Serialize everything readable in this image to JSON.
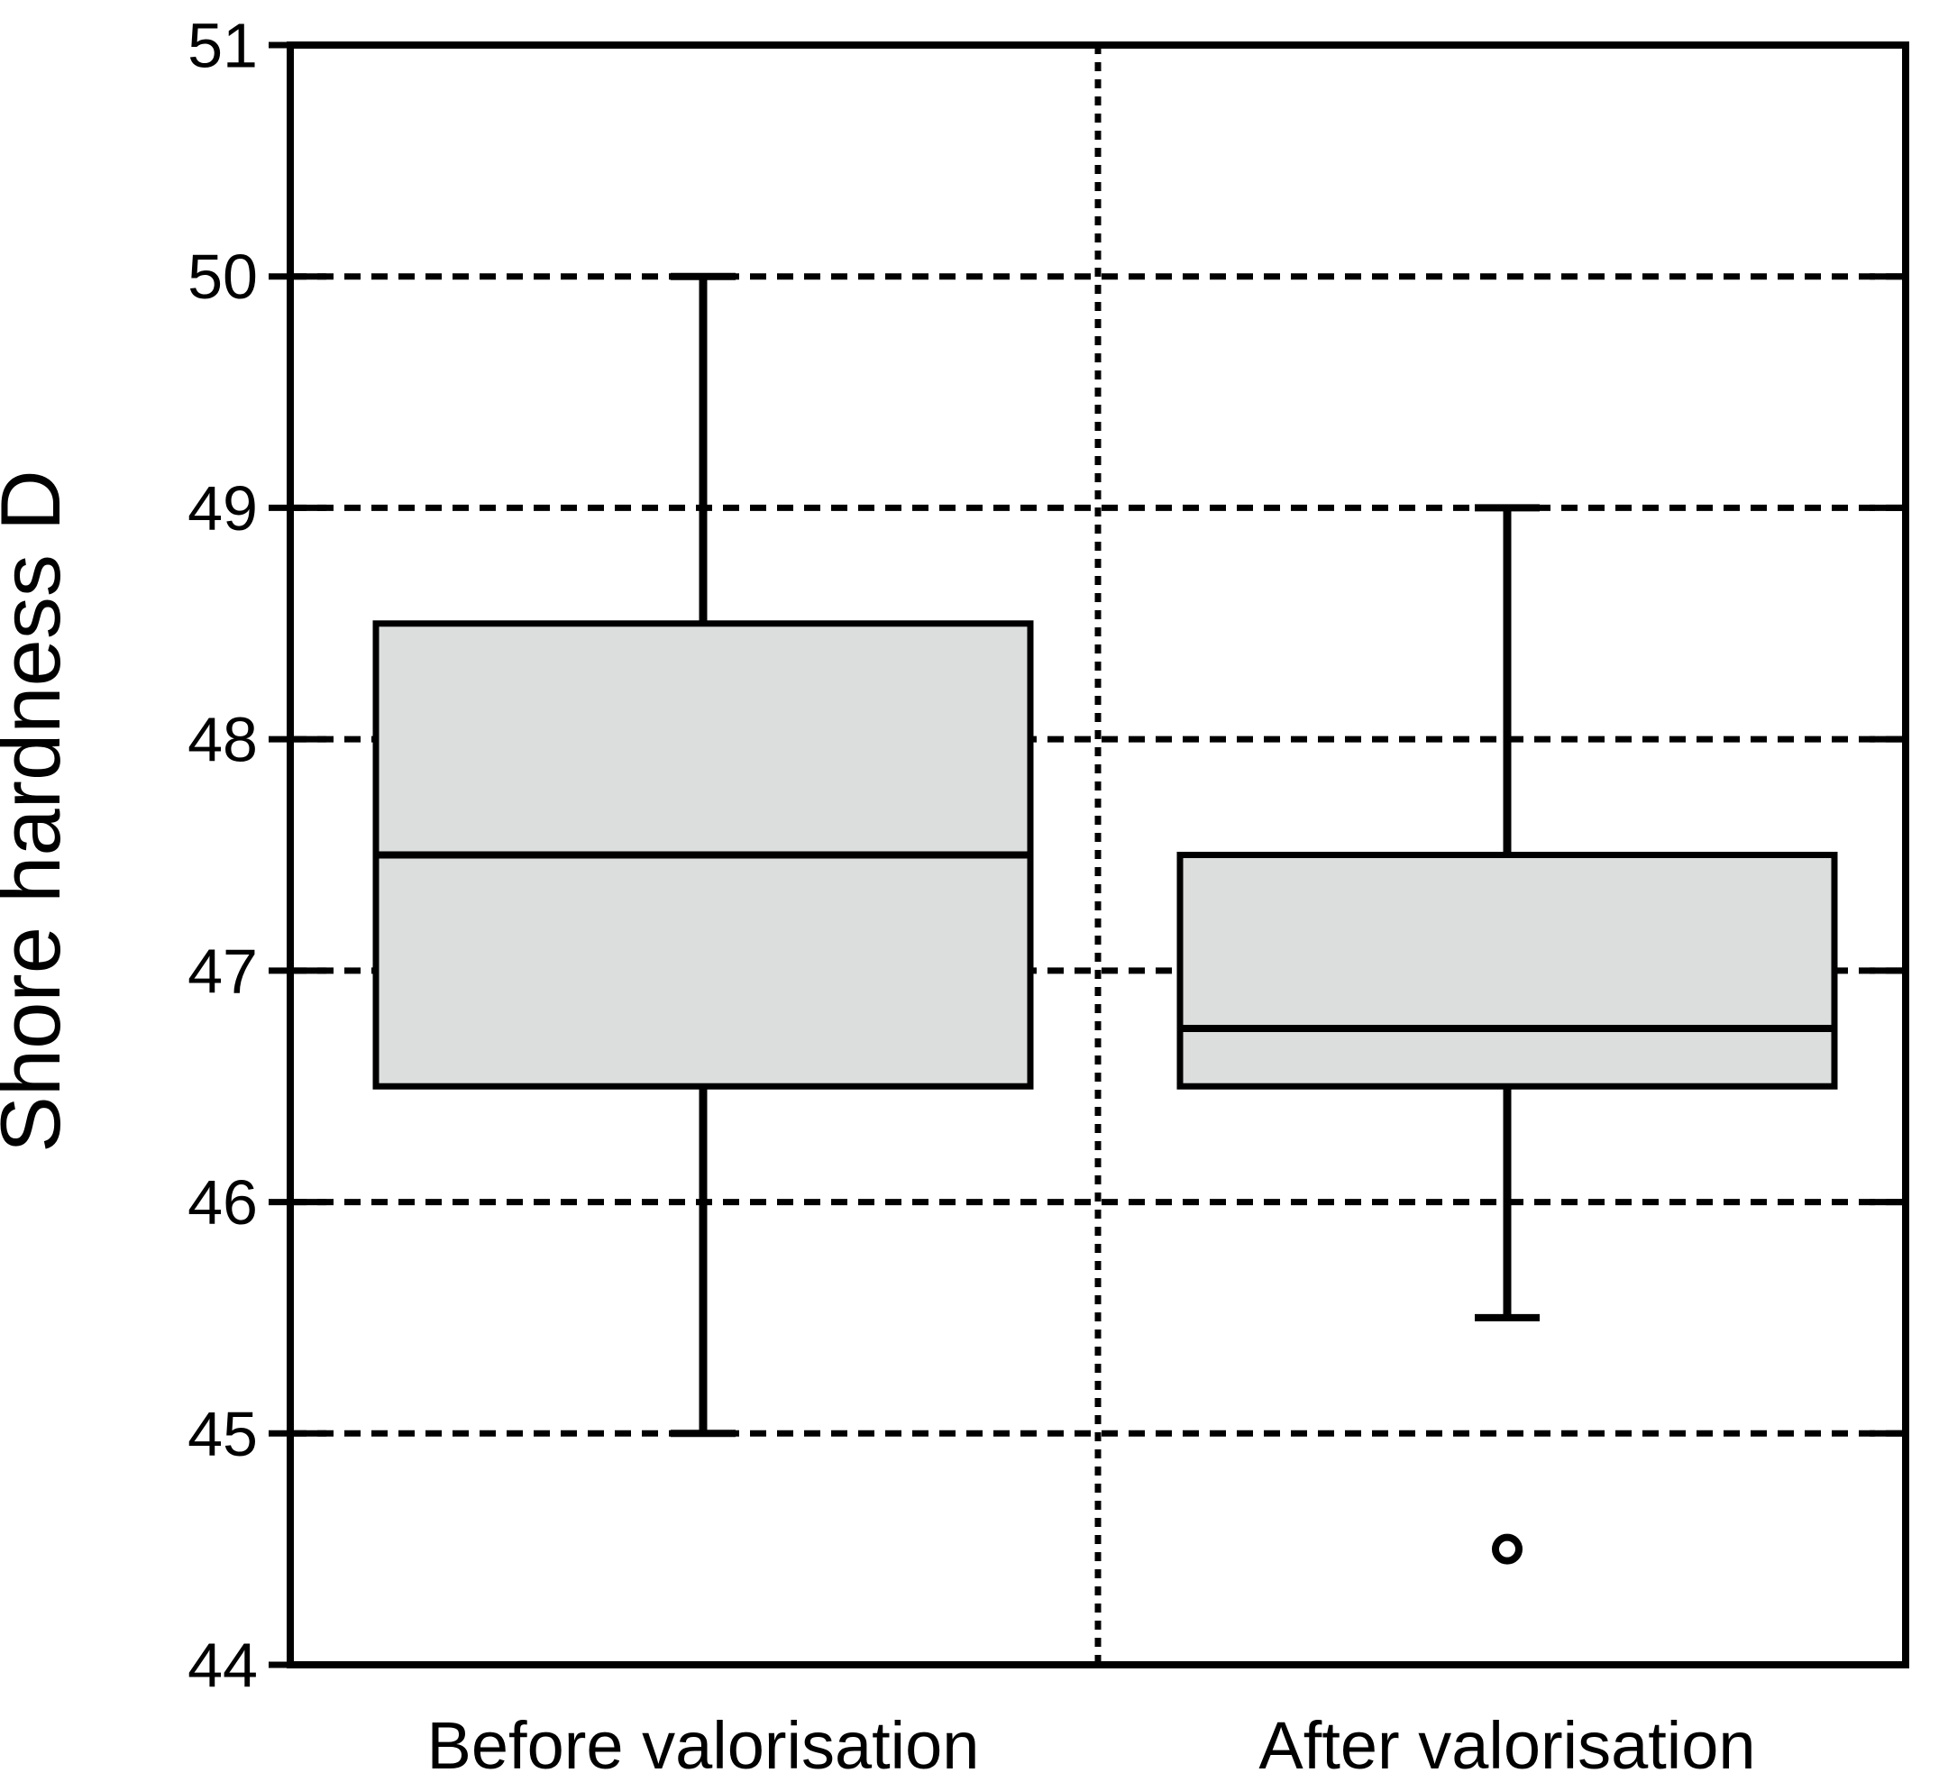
{
  "chart_data": {
    "type": "box",
    "title": "",
    "ylabel": "Shore hardness D",
    "xlabel": "",
    "categories": [
      "Before valorisation",
      "After valorisation"
    ],
    "ylim": [
      44,
      51
    ],
    "yticks": [
      44,
      45,
      46,
      47,
      48,
      49,
      50,
      51
    ],
    "gridline_values": [
      45,
      46,
      47,
      48,
      49,
      50
    ],
    "grid": "dashed-horizontal",
    "separator": "dotted vertical line between categories",
    "legend": "none",
    "series": [
      {
        "name": "Before valorisation",
        "whisker_low": 45.0,
        "q1": 46.5,
        "median": 47.5,
        "q3": 48.5,
        "whisker_high": 50.0,
        "outliers": []
      },
      {
        "name": "After valorisation",
        "whisker_low": 45.5,
        "q1": 46.5,
        "median": 46.75,
        "q3": 47.5,
        "whisker_high": 49.0,
        "outliers": [
          44.5
        ]
      }
    ],
    "colors": {
      "box_fill": "#dcdddd",
      "stroke": "#000000",
      "background": "#ffffff"
    }
  }
}
